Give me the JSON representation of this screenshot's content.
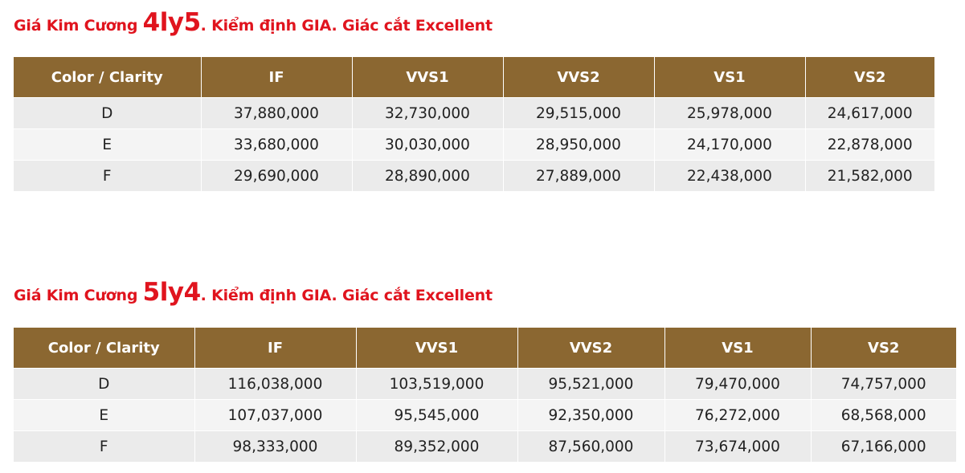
{
  "sections": [
    {
      "title_prefix": "Giá Kim Cương ",
      "title_size": "4ly5",
      "title_suffix": ". Kiểm định GIA. Giác cắt Excellent",
      "headers": [
        "Color / Clarity",
        "IF",
        "VVS1",
        "VVS2",
        "VS1",
        "VS2"
      ],
      "rows": [
        [
          "D",
          "37,880,000",
          "32,730,000",
          "29,515,000",
          "25,978,000",
          "24,617,000"
        ],
        [
          "E",
          "33,680,000",
          "30,030,000",
          "28,950,000",
          "24,170,000",
          "22,878,000"
        ],
        [
          "F",
          "29,690,000",
          "28,890,000",
          "27,889,000",
          "22,438,000",
          "21,582,000"
        ]
      ]
    },
    {
      "title_prefix": "Giá Kim Cương ",
      "title_size": "5ly4",
      "title_suffix": ". Kiểm định GIA. Giác cắt Excellent",
      "headers": [
        "Color / Clarity",
        "IF",
        "VVS1",
        "VVS2",
        "VS1",
        "VS2"
      ],
      "rows": [
        [
          "D",
          "116,038,000",
          "103,519,000",
          "95,521,000",
          "79,470,000",
          "74,757,000"
        ],
        [
          "E",
          "107,037,000",
          "95,545,000",
          "92,350,000",
          "76,272,000",
          "68,568,000"
        ],
        [
          "F",
          "98,333,000",
          "89,352,000",
          "87,560,000",
          "73,674,000",
          "67,166,000"
        ]
      ]
    }
  ],
  "colors": {
    "title": "#e0141e",
    "header_bg": "#8b6731",
    "header_text": "#ffffff",
    "row_odd": "#ebebeb",
    "row_even": "#f4f4f4"
  }
}
